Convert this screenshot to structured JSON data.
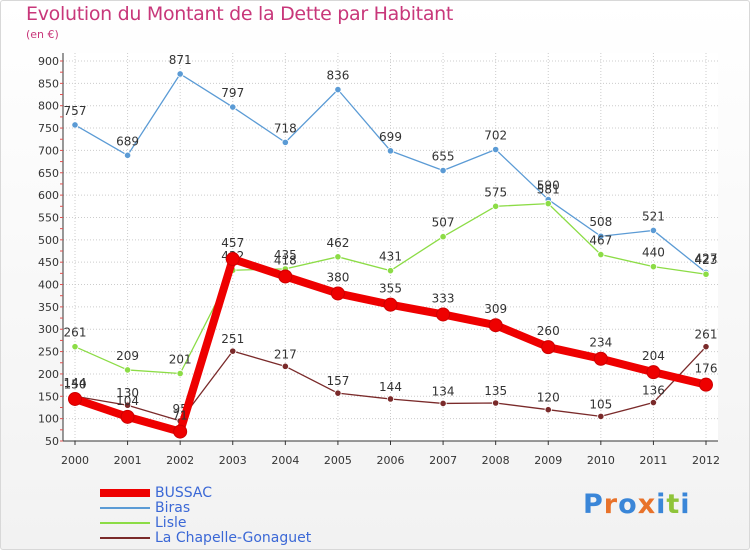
{
  "header": {
    "title": "Evolution du Montant de la Dette par Habitant",
    "unit": "(en €)"
  },
  "brand": {
    "logo_text": "Proxiti",
    "letters": [
      "P",
      "r",
      "o",
      "x",
      "i",
      "t",
      "i"
    ],
    "letter_colors": [
      "#3a86d8",
      "#e8722a",
      "#3a86d8",
      "#e8722a",
      "#3a86d8",
      "#8fc43a",
      "#3a86d8"
    ]
  },
  "chart_data": {
    "type": "line",
    "x": [
      "2000",
      "2001",
      "2002",
      "2003",
      "2004",
      "2005",
      "2006",
      "2007",
      "2008",
      "2009",
      "2010",
      "2011",
      "2012"
    ],
    "ylim": [
      50,
      900
    ],
    "yticks": [
      50,
      100,
      150,
      200,
      250,
      300,
      350,
      400,
      450,
      500,
      550,
      600,
      650,
      700,
      750,
      800,
      850,
      900
    ],
    "grid": true,
    "legend_position": "bottom-left",
    "series": [
      {
        "name": "BUSSAC",
        "color": "#ee0000",
        "values": [
          144,
          104,
          71,
          457,
          418,
          380,
          355,
          333,
          309,
          260,
          234,
          204,
          176
        ],
        "labels": [
          "144",
          "104",
          "71",
          "457",
          "418",
          "380",
          "355",
          "333",
          "309",
          "260",
          "234",
          "204",
          "176"
        ]
      },
      {
        "name": "Biras",
        "color": "#5b9bd5",
        "values": [
          757,
          689,
          871,
          797,
          718,
          836,
          699,
          655,
          702,
          590,
          508,
          521,
          427
        ],
        "labels": [
          "757",
          "689",
          "871",
          "797",
          "718",
          "836",
          "699",
          "655",
          "702",
          "590",
          "508",
          "521",
          "427"
        ]
      },
      {
        "name": "Lisle",
        "color": "#8cdc46",
        "values": [
          261,
          209,
          201,
          432,
          435,
          462,
          431,
          507,
          575,
          581,
          467,
          440,
          423
        ],
        "labels": [
          "261",
          "209",
          "201",
          "432",
          "435",
          "462",
          "431",
          "507",
          "575",
          "581",
          "467",
          "440",
          "423"
        ]
      },
      {
        "name": "La Chapelle-Gonaguet",
        "color": "#7a2a2a",
        "values": [
          150,
          130,
          95,
          251,
          217,
          157,
          144,
          134,
          135,
          120,
          105,
          136,
          261
        ],
        "labels": [
          "150",
          "130",
          "95",
          "251",
          "217",
          "157",
          "144",
          "134",
          "135",
          "120",
          "105",
          "136",
          "261"
        ]
      }
    ]
  }
}
